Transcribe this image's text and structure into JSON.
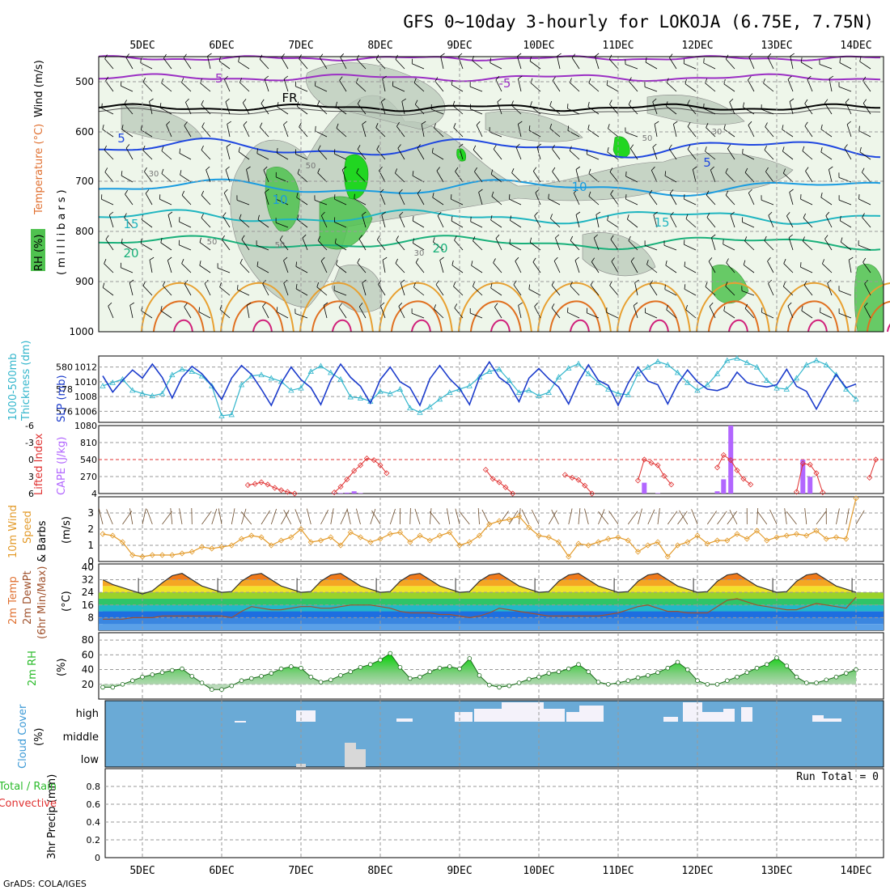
{
  "title": "GFS 0~10day 3-hourly for LOKOJA (6.75E, 7.75N)",
  "footer": "GrADS: COLA/IGES",
  "x_axis": {
    "labels": [
      "5DEC",
      "6DEC",
      "7DEC",
      "8DEC",
      "9DEC",
      "10DEC",
      "11DEC",
      "12DEC",
      "13DEC",
      "14DEC"
    ]
  },
  "panels": {
    "upper": {
      "ylabels": [
        "RH (%)",
        "Temperature (°C)",
        "Wind (m/s)",
        "(millibars)"
      ],
      "yticks": [
        "500",
        "600",
        "700",
        "800",
        "900",
        "1000"
      ],
      "contour_labels": [
        "-5",
        "-5",
        "FR",
        "5",
        "5",
        "10",
        "10",
        "15",
        "15",
        "20",
        "20",
        "30",
        "30",
        "50",
        "50",
        "50",
        "50",
        "30"
      ]
    },
    "slp": {
      "ylabels": [
        "1000-500mb",
        "Thickness (dm)",
        "SLP (mb)"
      ],
      "left_ticks": [
        "580",
        "578",
        "576"
      ],
      "right_ticks": [
        "1012",
        "1010",
        "1008",
        "1006"
      ]
    },
    "cape": {
      "ylabels": [
        "Lifted Index",
        "CAPE (J/kg)"
      ],
      "left_ticks": [
        "-6",
        "-3",
        "0",
        "3",
        "6"
      ],
      "right_ticks": [
        "1080",
        "810",
        "540",
        "270",
        "4"
      ]
    },
    "wind10": {
      "ylabels": [
        "10m Wind",
        "Speed",
        "& Barbs",
        "(m/s)"
      ],
      "yticks": [
        "3",
        "2",
        "1",
        "0"
      ]
    },
    "temp": {
      "ylabels": [
        "2m Temp",
        "2m DewPt",
        "(6hr Min/Max)",
        "(°C)"
      ],
      "yticks": [
        "40",
        "32",
        "24",
        "16",
        "8"
      ]
    },
    "rh": {
      "ylabels": [
        "2m RH",
        "(%)"
      ],
      "yticks": [
        "80",
        "60",
        "40",
        "20"
      ]
    },
    "cloud": {
      "ylabels": [
        "Cloud Cover",
        "(%)"
      ],
      "levels": [
        "high",
        "middle",
        "low"
      ]
    },
    "precip": {
      "ylabels": [
        "3hr Precip (mm)",
        "Total / Rain",
        "Convective"
      ],
      "yticks": [
        "0.8",
        "0.6",
        "0.4",
        "0.2",
        "0"
      ],
      "run_total": "Run Total = 0"
    }
  },
  "colors": {
    "rh_green": "#4fc24f",
    "slp_line": "#1c3ccc",
    "thickness_line": "#33b6cc",
    "cape_bar": "#b266ff",
    "lifted_index": "#e03030",
    "wind_speed": "#e39b2b",
    "dewpoint": "#a0522d",
    "cloud_blue": "#6aaad6",
    "rh_panel_green": "#2bbb2b"
  },
  "chart_data": [
    {
      "type": "line",
      "title": "1000-500mb Thickness (dm) / SLP (mb)",
      "x_unit": "3-hourly steps from 4DEC 12Z",
      "series": [
        {
          "name": "SLP (mb)",
          "values": [
            1010.8,
            1008.6,
            1010.2,
            1011.6,
            1010.5,
            1012.4,
            1010.6,
            1007.8,
            1010.6,
            1012.1,
            1011.1,
            1009.5,
            1007.6,
            1010.5,
            1012.2,
            1011.0,
            1009.0,
            1006.8,
            1009.8,
            1012.0,
            1010.3,
            1009.2,
            1006.9,
            1010.2,
            1012.4,
            1010.6,
            1009.4,
            1007.1,
            1010.3,
            1012.0,
            1010.0,
            1009.2,
            1006.8,
            1010.4,
            1012.2,
            1010.4,
            1009.1,
            1006.9,
            1010.6,
            1012.7,
            1010.6,
            1009.6,
            1007.3,
            1010.5,
            1011.8,
            1010.4,
            1009.3,
            1007.0,
            1010.0,
            1012.3,
            1010.2,
            1009.5,
            1006.8,
            1009.8,
            1012.0,
            1010.1,
            1009.6,
            1007.0,
            1009.7,
            1011.6,
            1010.0,
            1009.0,
            1008.8,
            1009.3,
            1011.3,
            1009.9,
            1009.5,
            1009.3,
            1009.6,
            1011.7,
            1009.4,
            1008.7,
            1006.3,
            1008.8,
            1011.0,
            1009.2,
            1009.7
          ]
        },
        {
          "name": "Thickness (dm)",
          "values": [
            578.3,
            578.6,
            578.9,
            577.9,
            577.6,
            577.4,
            577.6,
            579.3,
            579.8,
            579.6,
            579.2,
            578.3,
            575.6,
            575.7,
            578.4,
            579.2,
            579.3,
            579.0,
            578.7,
            577.9,
            578.1,
            579.6,
            580.1,
            579.5,
            578.9,
            577.3,
            577.2,
            576.9,
            577.8,
            577.6,
            578.0,
            576.3,
            575.9,
            576.4,
            577.1,
            577.7,
            578.0,
            578.3,
            579.1,
            579.6,
            579.8,
            578.8,
            577.7,
            577.9,
            577.4,
            577.7,
            579.1,
            579.9,
            580.3,
            579.4,
            578.6,
            578.0,
            577.6,
            577.5,
            579.4,
            580.0,
            580.5,
            580.2,
            579.5,
            578.6,
            577.9,
            578.4,
            579.4,
            580.6,
            580.8,
            580.4,
            580.0,
            578.8,
            578.1,
            578.0,
            579.0,
            580.2,
            580.6,
            580.2,
            579.3,
            578.0,
            577.1
          ]
        }
      ],
      "y_left_range": [
        575,
        581
      ],
      "y_right_range": [
        1004.5,
        1013.5
      ]
    },
    {
      "type": "bar",
      "title": "CAPE (J/kg) / Lifted Index",
      "series": [
        {
          "name": "CAPE (J/kg)",
          "x_days": [
            7.42,
            7.5,
            7.58,
            7.67,
            7.75,
            11.33,
            11.5,
            12.25,
            12.33,
            12.42,
            13.33,
            13.42
          ],
          "values": [
            8,
            12,
            18,
            40,
            12,
            176,
            12,
            40,
            230,
            1080,
            540,
            270
          ]
        },
        {
          "name": "Lifted Index",
          "x_days": [
            6.33,
            6.42,
            6.5,
            6.58,
            6.67,
            6.75,
            6.83,
            6.92,
            7.42,
            7.5,
            7.58,
            7.67,
            7.75,
            7.83,
            7.92,
            8.0,
            8.08,
            9.33,
            9.42,
            9.5,
            9.58,
            9.67,
            10.33,
            10.42,
            10.5,
            10.58,
            10.67,
            11.25,
            11.33,
            11.42,
            11.5,
            11.58,
            11.67,
            12.25,
            12.33,
            12.42,
            12.5,
            12.58,
            12.67,
            13.25,
            13.33,
            13.42,
            13.5,
            13.58,
            14.17,
            14.25
          ],
          "values": [
            4.5,
            4.3,
            4.0,
            4.4,
            5.0,
            5.4,
            5.7,
            6.0,
            5.8,
            4.8,
            3.5,
            2.0,
            1.0,
            -0.2,
            0.1,
            1.0,
            2.4,
            1.8,
            3.4,
            4.0,
            4.9,
            6.0,
            2.7,
            3.2,
            3.6,
            4.6,
            6.0,
            3.7,
            0.0,
            0.6,
            1.0,
            2.9,
            4.4,
            1.4,
            -0.8,
            0.1,
            1.9,
            3.4,
            4.4,
            5.7,
            0.7,
            0.9,
            2.4,
            5.8,
            3.2,
            0.0
          ]
        }
      ],
      "y_left_range": [
        6,
        -6
      ],
      "y_right_range": [
        4,
        1080
      ],
      "reference_line": 0
    },
    {
      "type": "line",
      "title": "10m Wind Speed (m/s)",
      "series": [
        {
          "name": "Speed (m/s)",
          "values": [
            1.7,
            1.6,
            1.2,
            0.4,
            0.3,
            0.4,
            0.4,
            0.4,
            0.5,
            0.6,
            0.9,
            0.8,
            0.9,
            1.0,
            1.4,
            1.6,
            1.5,
            1.0,
            1.3,
            1.5,
            2.0,
            1.2,
            1.3,
            1.5,
            1.0,
            1.8,
            1.5,
            1.2,
            1.4,
            1.7,
            1.8,
            1.2,
            1.6,
            1.3,
            1.6,
            1.8,
            1.0,
            1.2,
            1.6,
            2.3,
            2.5,
            2.6,
            2.8,
            2.1,
            1.6,
            1.5,
            1.2,
            0.3,
            1.1,
            1.0,
            1.2,
            1.4,
            1.5,
            1.3,
            0.6,
            1.0,
            1.2,
            0.3,
            1.0,
            1.2,
            1.6,
            1.1,
            1.3,
            1.3,
            1.7,
            1.4,
            1.9,
            1.3,
            1.5,
            1.6,
            1.7,
            1.6,
            1.9,
            1.4,
            1.5,
            1.4,
            3.9
          ]
        }
      ],
      "y_range": [
        0,
        4
      ]
    },
    {
      "type": "area",
      "title": "2m Temp / 2m DewPt (°C)",
      "series": [
        {
          "name": "2m Temp (°C)",
          "values": [
            32.0,
            29.0,
            27.0,
            25.0,
            23.0,
            25.0,
            30.0,
            34.5,
            36.0,
            32.0,
            28.0,
            26.0,
            24.0,
            24.5,
            31.0,
            35.0,
            36.0,
            32.0,
            28.0,
            26.0,
            24.0,
            24.5,
            31.0,
            35.0,
            36.0,
            32.0,
            28.0,
            26.0,
            24.0,
            24.5,
            31.0,
            35.0,
            36.0,
            32.0,
            28.0,
            26.0,
            24.0,
            24.5,
            31.0,
            35.0,
            36.0,
            32.0,
            28.0,
            26.0,
            24.0,
            24.5,
            31.0,
            35.0,
            36.0,
            32.0,
            28.0,
            26.0,
            24.0,
            24.5,
            31.0,
            35.0,
            36.0,
            32.0,
            28.0,
            26.0,
            24.0,
            24.5,
            31.0,
            35.0,
            36.0,
            32.0,
            28.0,
            26.0,
            24.0,
            24.5,
            31.0,
            35.0,
            36.0,
            32.0,
            28.0,
            26.0,
            24.0
          ]
        },
        {
          "name": "2m DewPt (°C)",
          "values": [
            7,
            7,
            7,
            8,
            8,
            8,
            9,
            9,
            9,
            9,
            9,
            9,
            9,
            8,
            12,
            15,
            14,
            13,
            13,
            14,
            15,
            15,
            14,
            14,
            15,
            16,
            16,
            16,
            15,
            14,
            12,
            11,
            11,
            11,
            10,
            10,
            9,
            8,
            9,
            11,
            14,
            13,
            12,
            11,
            10,
            9,
            9,
            9,
            9,
            9,
            9,
            10,
            11,
            13,
            15,
            16,
            14,
            12,
            12,
            11,
            11,
            11,
            15,
            19,
            20,
            18,
            16,
            15,
            14,
            13,
            13,
            15,
            17,
            16,
            15,
            14,
            21
          ]
        }
      ],
      "y_range": [
        0,
        42
      ]
    },
    {
      "type": "area",
      "title": "2m RH (%)",
      "series": [
        {
          "name": "2m RH (%)",
          "values": [
            16,
            16,
            20,
            25,
            30,
            33,
            36,
            39,
            41,
            31,
            22,
            13,
            13,
            18,
            25,
            28,
            31,
            35,
            41,
            44,
            42,
            30,
            23,
            26,
            32,
            37,
            43,
            47,
            53,
            62,
            43,
            28,
            30,
            37,
            42,
            44,
            41,
            55,
            32,
            19,
            16,
            18,
            22,
            27,
            30,
            35,
            37,
            41,
            47,
            37,
            23,
            20,
            22,
            25,
            29,
            32,
            36,
            42,
            50,
            40,
            25,
            20,
            20,
            25,
            30,
            36,
            42,
            47,
            56,
            45,
            30,
            22,
            22,
            26,
            30,
            35,
            40
          ]
        }
      ],
      "y_range": [
        0,
        90
      ]
    }
  ]
}
